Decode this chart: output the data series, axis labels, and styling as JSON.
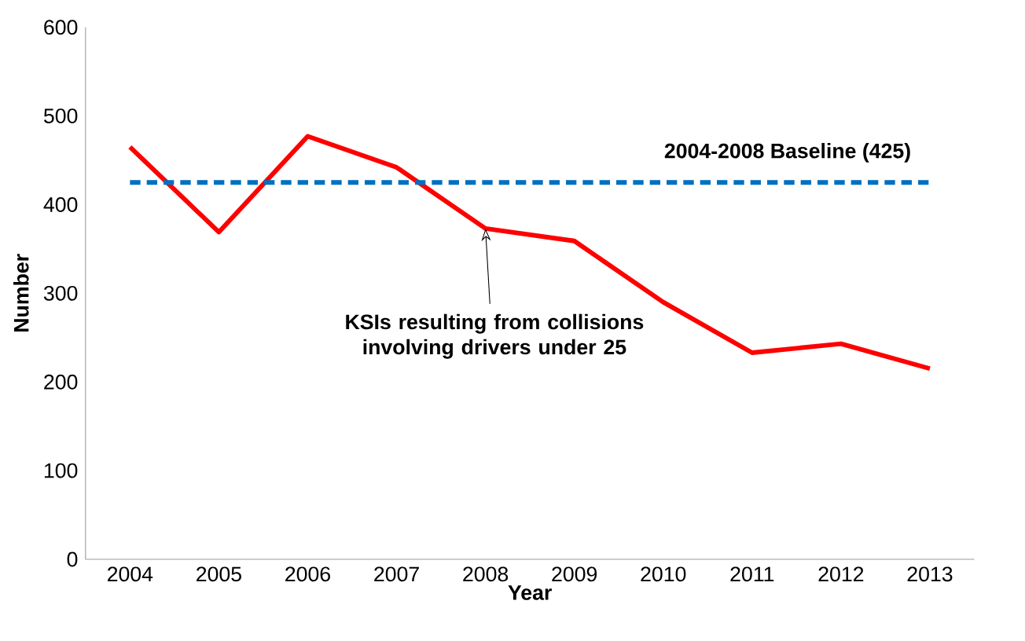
{
  "chart_data": {
    "type": "line",
    "xlabel": "Year",
    "ylabel": "Number",
    "categories": [
      "2004",
      "2005",
      "2006",
      "2007",
      "2008",
      "2009",
      "2010",
      "2011",
      "2012",
      "2013"
    ],
    "series": [
      {
        "color": "#ff0000",
        "values": [
          465,
          369,
          477,
          442,
          373,
          359,
          290,
          233,
          243,
          215
        ]
      }
    ],
    "ylim": [
      0,
      600
    ],
    "yticks": [
      0,
      100,
      200,
      300,
      400,
      500,
      600
    ],
    "ref_lines": [
      {
        "axis": "y",
        "value": 425,
        "label": "2004-2008  Baseline (425)",
        "color": "#0070c0",
        "line_style": "dashed"
      }
    ],
    "annotations": [
      {
        "text": "KSIs resulting from collisions involving drivers under 25",
        "x": "2008",
        "y": 373
      }
    ],
    "grid": false,
    "marker": "none",
    "line_style": "solid"
  }
}
